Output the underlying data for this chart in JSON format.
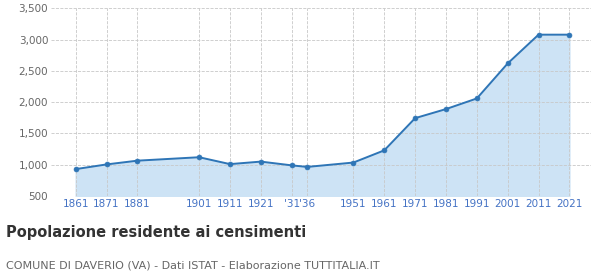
{
  "years": [
    1861,
    1871,
    1881,
    1901,
    1911,
    1921,
    1931,
    1936,
    1951,
    1961,
    1971,
    1981,
    1991,
    2001,
    2011,
    2021
  ],
  "population": [
    930,
    1005,
    1065,
    1120,
    1010,
    1050,
    990,
    965,
    1035,
    1230,
    1745,
    1890,
    2060,
    2620,
    3080,
    3080
  ],
  "line_color": "#2e75b6",
  "fill_color": "#cde3f5",
  "marker_color": "#2e75b6",
  "grid_color": "#c8c8c8",
  "background_color": "#ffffff",
  "ylim": [
    500,
    3500
  ],
  "yticks": [
    500,
    1000,
    1500,
    2000,
    2500,
    3000,
    3500
  ],
  "ytick_labels": [
    "500",
    "1,000",
    "1,500",
    "2,000",
    "2,500",
    "3,000",
    "3,500"
  ],
  "x_tick_positions": [
    1861,
    1871,
    1881,
    1901,
    1911,
    1921,
    1931,
    1936,
    1951,
    1961,
    1971,
    1981,
    1991,
    2001,
    2011,
    2021
  ],
  "x_tick_labels": [
    "1861",
    "1871",
    "1881",
    "1901",
    "1911",
    "1921",
    "'31",
    "'36",
    "1951",
    "1961",
    "1971",
    "1981",
    "1991",
    "2001",
    "2011",
    "2021"
  ],
  "xlim_left": 1853,
  "xlim_right": 2028,
  "title": "Popolazione residente ai censimenti",
  "subtitle": "COMUNE DI DAVERIO (VA) - Dati ISTAT - Elaborazione TUTTITALIA.IT",
  "title_fontsize": 10.5,
  "subtitle_fontsize": 8,
  "tick_color": "#4472c4",
  "ytick_fontsize": 7.5,
  "xtick_fontsize": 7.5
}
